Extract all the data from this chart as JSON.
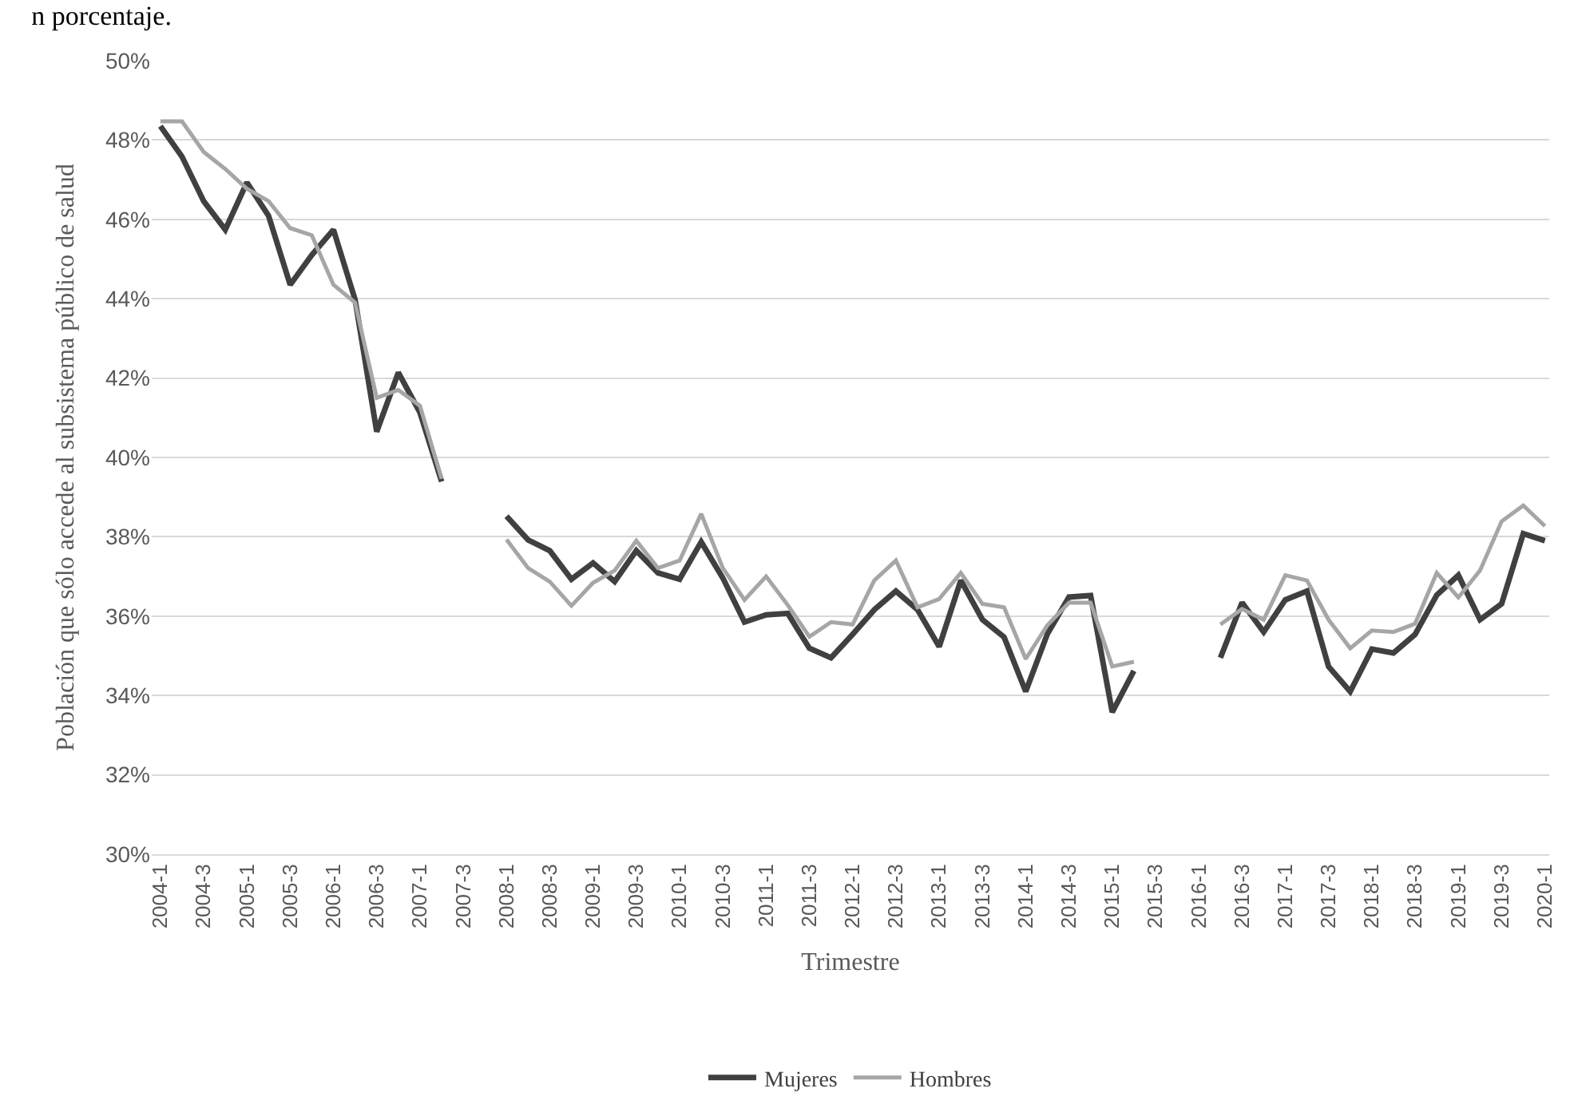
{
  "chart_data": {
    "type": "line",
    "title": "n porcentaje.",
    "xlabel": "Trimestre",
    "ylabel": "Población que sólo accede al subsistema público de salud",
    "categories": [
      "2004-1",
      null,
      "2004-3",
      null,
      "2005-1",
      null,
      "2005-3",
      null,
      "2006-1",
      null,
      "2006-3",
      null,
      "2007-1",
      null,
      "2007-3",
      null,
      "2008-1",
      null,
      "2008-3",
      null,
      "2009-1",
      null,
      "2009-3",
      null,
      "2010-1",
      null,
      "2010-3",
      null,
      "2011-1",
      null,
      "2011-3",
      null,
      "2012-1",
      null,
      "2012-3",
      null,
      "2013-1",
      null,
      "2013-3",
      null,
      "2014-1",
      null,
      "2014-3",
      null,
      "2015-1",
      null,
      "2015-3",
      null,
      "2016-1",
      null,
      "2016-3",
      null,
      "2017-1",
      null,
      "2017-3",
      null,
      "2018-1",
      null,
      "2018-3",
      null,
      "2019-1",
      null,
      "2019-3",
      null,
      "2020-1"
    ],
    "series": [
      {
        "name": "Mujeres",
        "color": "#404040",
        "values": [
          48.35,
          47.58,
          46.46,
          45.74,
          46.93,
          46.09,
          44.35,
          45.1,
          45.74,
          43.98,
          40.65,
          42.14,
          41.13,
          39.39,
          null,
          null,
          38.52,
          37.92,
          37.65,
          36.93,
          37.34,
          36.87,
          37.65,
          37.09,
          36.93,
          37.87,
          36.96,
          35.85,
          36.03,
          36.07,
          35.19,
          34.95,
          35.54,
          36.16,
          36.63,
          36.16,
          35.23,
          36.9,
          35.91,
          35.47,
          34.1,
          35.55,
          36.48,
          36.52,
          33.58,
          34.62,
          null,
          null,
          null,
          34.95,
          36.34,
          35.6,
          36.41,
          36.63,
          34.73,
          34.1,
          35.17,
          35.07,
          35.54,
          36.53,
          37.03,
          35.91,
          36.31,
          38.08,
          37.9
        ]
      },
      {
        "name": "Hombres",
        "color": "#a6a6a6",
        "values": [
          48.47,
          48.47,
          47.7,
          47.27,
          46.77,
          46.46,
          45.78,
          45.6,
          44.35,
          43.9,
          41.5,
          41.7,
          41.3,
          39.46,
          null,
          null,
          37.93,
          37.21,
          36.87,
          36.26,
          36.84,
          37.15,
          37.9,
          37.21,
          37.4,
          38.58,
          37.21,
          36.41,
          37.0,
          36.28,
          35.48,
          35.85,
          35.79,
          36.9,
          37.4,
          36.22,
          36.43,
          37.09,
          36.31,
          36.22,
          34.92,
          35.77,
          36.34,
          36.34,
          34.73,
          34.85,
          null,
          null,
          null,
          35.79,
          36.18,
          35.91,
          37.03,
          36.9,
          35.91,
          35.19,
          35.64,
          35.6,
          35.81,
          37.09,
          36.47,
          37.15,
          38.39,
          38.79,
          38.27
        ]
      }
    ],
    "ylim": [
      30,
      50
    ],
    "yticks": [
      {
        "value": 30,
        "label": "30%"
      },
      {
        "value": 32,
        "label": "32%"
      },
      {
        "value": 34,
        "label": "34%"
      },
      {
        "value": 36,
        "label": "36%"
      },
      {
        "value": 38,
        "label": "38%"
      },
      {
        "value": 40,
        "label": "40%"
      },
      {
        "value": 42,
        "label": "42%"
      },
      {
        "value": 44,
        "label": "44%"
      },
      {
        "value": 46,
        "label": "46%"
      },
      {
        "value": 48,
        "label": "48%"
      },
      {
        "value": 50,
        "label": "50%"
      }
    ],
    "grid": "y",
    "legend": "bottom",
    "marker": "none",
    "line_style": "solid"
  }
}
